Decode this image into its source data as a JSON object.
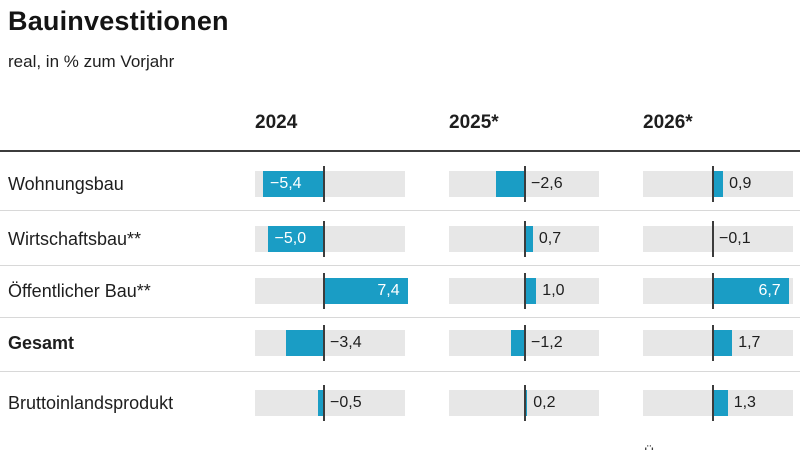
{
  "title": "Bauinvestitionen",
  "subtitle": "real, in % zum Vorjahr",
  "footnote_fragment": "Ü",
  "colors": {
    "bar": "#1a9dc5",
    "track": "#e7e7e7",
    "zero_line": "#3c3c3c",
    "header_rule": "#3c3c3c",
    "row_separator": "#d8d8d8",
    "text": "#1e1e1e",
    "value_inside_bar": "#ffffff"
  },
  "chart_data": {
    "type": "bar",
    "orientation": "horizontal",
    "title": "Bauinvestitionen",
    "subtitle": "real, in % zum Vorjahr",
    "unit": "percent change vs previous year",
    "categories": [
      "Wohnungsbau",
      "Wirtschaftsbau**",
      "Öffentlicher Bau**",
      "Gesamt",
      "Bruttoinlandsprodukt"
    ],
    "bold_categories": [
      "Gesamt"
    ],
    "series": [
      {
        "name": "2024",
        "values": [
          -5.4,
          -5.0,
          7.4,
          -3.4,
          -0.5
        ]
      },
      {
        "name": "2025*",
        "values": [
          -2.6,
          0.7,
          1.0,
          -1.2,
          0.2
        ]
      },
      {
        "name": "2026*",
        "values": [
          0.9,
          -0.1,
          6.7,
          1.7,
          1.3
        ]
      }
    ],
    "value_format": "german decimal comma, U+2212 minus",
    "legend_position": "column headers",
    "grid": false
  }
}
